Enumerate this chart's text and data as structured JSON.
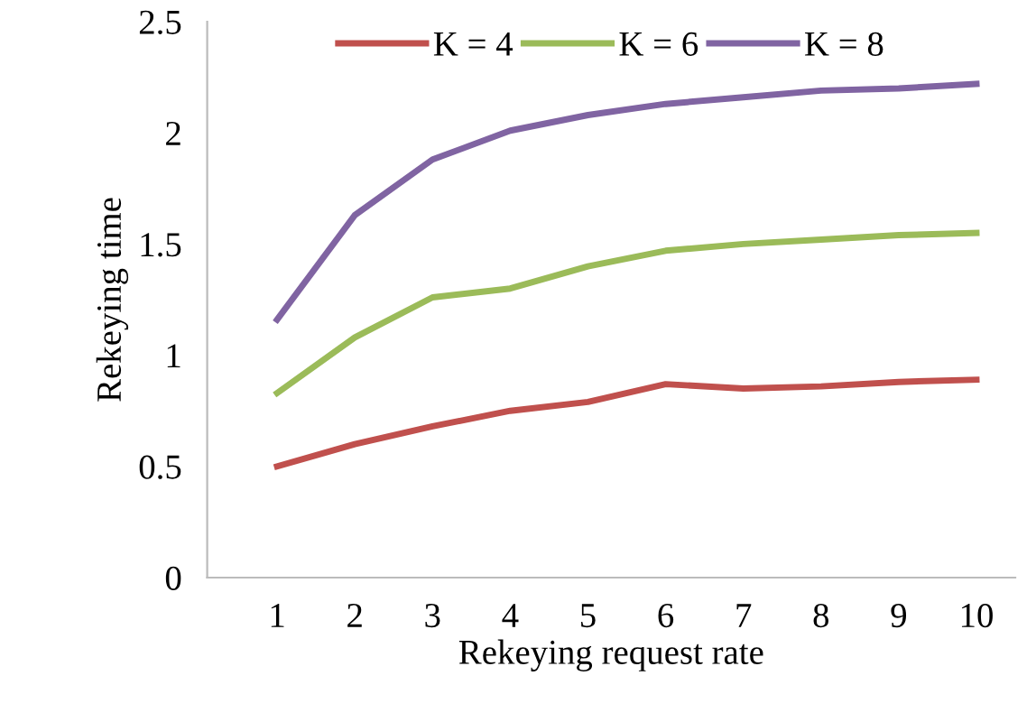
{
  "chart_data": {
    "type": "line",
    "xlabel": "Rekeying request rate",
    "ylabel": "Rekeying time",
    "categories": [
      "1",
      "2",
      "3",
      "4",
      "5",
      "6",
      "7",
      "8",
      "9",
      "10"
    ],
    "series": [
      {
        "name": "K = 4",
        "color": "#c0504d",
        "values": [
          0.5,
          0.6,
          0.68,
          0.75,
          0.79,
          0.87,
          0.85,
          0.86,
          0.88,
          0.89
        ]
      },
      {
        "name": "K = 6",
        "color": "#9bbb59",
        "values": [
          0.83,
          1.08,
          1.26,
          1.3,
          1.4,
          1.47,
          1.5,
          1.52,
          1.54,
          1.55
        ]
      },
      {
        "name": "K = 8",
        "color": "#8064a2",
        "values": [
          1.16,
          1.63,
          1.88,
          2.01,
          2.08,
          2.13,
          2.16,
          2.19,
          2.2,
          2.22
        ]
      }
    ],
    "ylim": [
      0,
      2.5
    ],
    "yticks": [
      0,
      0.5,
      1,
      1.5,
      2,
      2.5
    ],
    "grid": false,
    "legend": "top",
    "marker": "none",
    "line_style": "solid"
  }
}
